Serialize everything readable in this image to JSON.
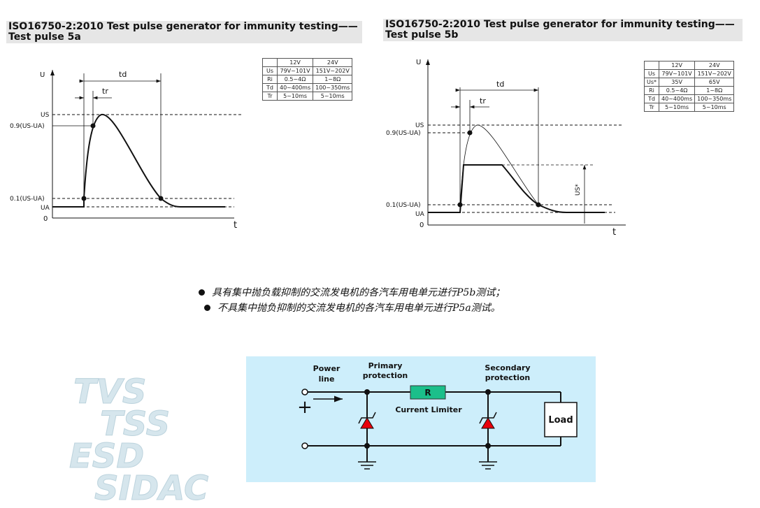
{
  "pulse5a": {
    "title_line1": "ISO16750-2:2010 Test pulse generator for immunity testing——",
    "title_line2": "Test pulse 5a",
    "table": {
      "header": [
        "",
        "12V",
        "24V"
      ],
      "rows": [
        [
          "Us",
          "79V~101V",
          "151V~202V"
        ],
        [
          "Ri",
          "0.5~4Ω",
          "1~8Ω"
        ],
        [
          "Td",
          "40~400ms",
          "100~350ms"
        ],
        [
          "Tr",
          "5~10ms",
          "5~10ms"
        ]
      ]
    },
    "labels": {
      "u": "U",
      "zero": "0",
      "t": "t",
      "td": "td",
      "tr": "tr",
      "us": "US",
      "p09": "0.9(US-UA)",
      "p01": "0.1(US-UA)",
      "ua": "UA"
    }
  },
  "pulse5b": {
    "title_line1": "ISO16750-2:2010 Test pulse generator for immunity testing——",
    "title_line2": "Test pulse 5b",
    "table": {
      "header": [
        "",
        "12V",
        "24V"
      ],
      "rows": [
        [
          "Us",
          "79V~101V",
          "151V~202V"
        ],
        [
          "Us*",
          "35V",
          "65V"
        ],
        [
          "Ri",
          "0.5~4Ω",
          "1~8Ω"
        ],
        [
          "Td",
          "40~400ms",
          "100~350ms"
        ],
        [
          "Tr",
          "5~10ms",
          "5~10ms"
        ]
      ]
    },
    "labels": {
      "u": "U",
      "zero": "0",
      "t": "t",
      "td": "td",
      "tr": "tr",
      "us": "US",
      "p09": "0.9(US-UA)",
      "p01": "0.1(US-UA)",
      "ua": "UA",
      "us_star": "US*"
    }
  },
  "bullets": [
    "具有集中抛负载抑制的交流发电机的各汽车用电单元进行P5b测试；",
    "不具集中抛负抑制的交流发电机的各汽车用电单元进行P5a测试。"
  ],
  "circuit": {
    "power_line": [
      "Power",
      "line"
    ],
    "primary": [
      "Primary",
      "protection"
    ],
    "secondary": [
      "Secondary",
      "protection"
    ],
    "resistor": "R",
    "current_limiter": "Current Limiter",
    "load": "Load",
    "plus": "+",
    "bg": "#cdeefb",
    "resistor_color": "#1bbf8a",
    "diode_color": "#e8000b"
  },
  "watermark": [
    "TVS",
    "TSS",
    "ESD",
    "SIDAC"
  ]
}
